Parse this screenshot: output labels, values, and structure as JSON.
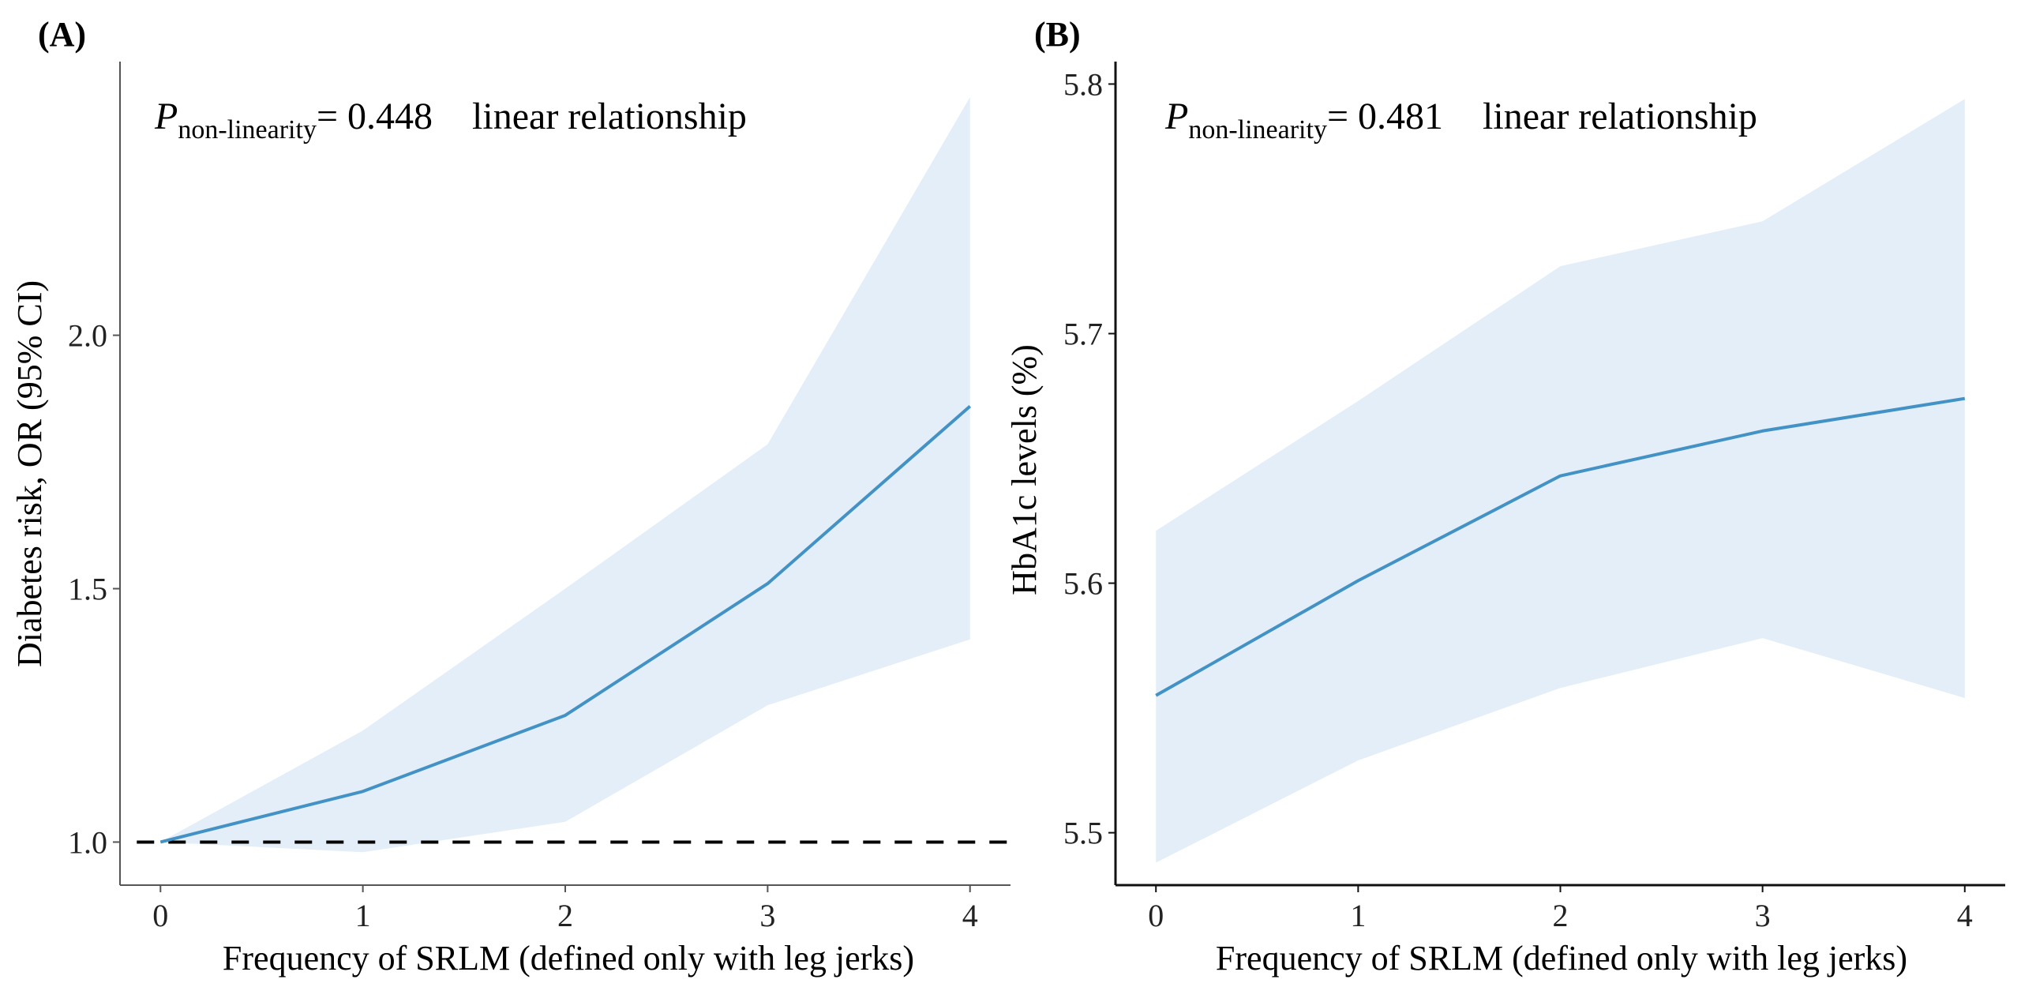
{
  "figure": {
    "panels": [
      {
        "label": "(A)",
        "annotation": {
          "p_symbol": "P",
          "p_subscript": "non-linearity",
          "p_value_text": "= 0.448",
          "relationship": "linear relationship"
        }
      },
      {
        "label": "(B)",
        "annotation": {
          "p_symbol": "P",
          "p_subscript": "non-linearity",
          "p_value_text": "= 0.481",
          "relationship": "linear relationship"
        }
      }
    ],
    "colors": {
      "line": "#4292c6",
      "ci_band": "#e3eef8",
      "reference": "#000000",
      "axis": "#333333"
    }
  },
  "chart_data": [
    {
      "type": "line",
      "title": "(A)",
      "xlabel": "Frequency of SRLM (defined only with leg jerks)",
      "ylabel": "Diabetes risk, OR (95% CI)",
      "x": [
        0,
        1,
        2,
        3,
        4
      ],
      "x_ticks": [
        "0",
        "1",
        "2",
        "3",
        "4"
      ],
      "y_ticks": [
        "1.0",
        "1.5",
        "2.0"
      ],
      "xlim": [
        -0.2,
        4.2
      ],
      "ylim": [
        0.915,
        2.54
      ],
      "series": [
        {
          "name": "OR",
          "values": [
            1.0,
            1.1,
            1.25,
            1.51,
            1.86
          ]
        },
        {
          "name": "CI lower",
          "values": [
            1.0,
            0.98,
            1.04,
            1.27,
            1.4
          ]
        },
        {
          "name": "CI upper",
          "values": [
            1.0,
            1.22,
            1.5,
            1.785,
            2.47
          ]
        }
      ],
      "reference_line": {
        "y": 1.0,
        "style": "dashed"
      },
      "annotation": "P non-linearity = 0.448 linear relationship",
      "grid": false,
      "legend": "none"
    },
    {
      "type": "line",
      "title": "(B)",
      "xlabel": "Frequency of SRLM (defined only with leg jerks)",
      "ylabel": "HbA1c levels (%)",
      "x": [
        0,
        1,
        2,
        3,
        4
      ],
      "x_ticks": [
        "0",
        "1",
        "2",
        "3",
        "4"
      ],
      "y_ticks": [
        "5.5",
        "5.6",
        "5.7",
        "5.8"
      ],
      "xlim": [
        -0.2,
        4.2
      ],
      "ylim": [
        5.479,
        5.809
      ],
      "series": [
        {
          "name": "HbA1c",
          "values": [
            5.555,
            5.601,
            5.643,
            5.661,
            5.674
          ]
        },
        {
          "name": "CI lower",
          "values": [
            5.488,
            5.529,
            5.558,
            5.578,
            5.554
          ]
        },
        {
          "name": "CI upper",
          "values": [
            5.621,
            5.673,
            5.727,
            5.745,
            5.794
          ]
        }
      ],
      "annotation": "P non-linearity = 0.481 linear relationship",
      "grid": false,
      "legend": "none"
    }
  ]
}
